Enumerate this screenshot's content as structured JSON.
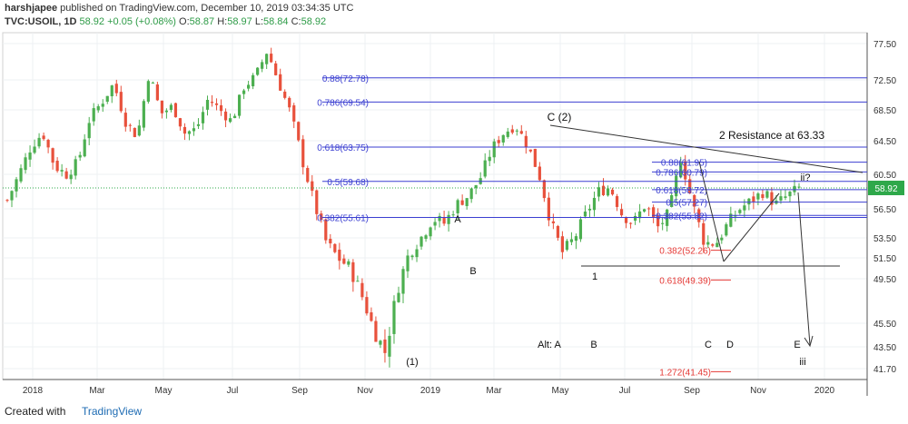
{
  "header": {
    "user": "harshjapee",
    "published": "published on TradingView.com, December 10, 2019 03:34:35 UTC",
    "symbol": "TVC:USOIL, 1D",
    "last": "58.92",
    "change": "+0.05 (+0.08%)",
    "o_label": "O:",
    "o_value": "58.87",
    "h_label": "H:",
    "h_value": "58.97",
    "l_label": "L:",
    "l_value": "58.84",
    "c_label": "C:",
    "c_value": "58.92"
  },
  "footer": {
    "created_with": "Created with",
    "brand": "TradingView"
  },
  "colors": {
    "up": "#4caf50",
    "down": "#e8513c",
    "fib": "#3b3fd1",
    "fib_low": "#e53935",
    "price_badge": "#2ea84a"
  },
  "chart_data": {
    "type": "candlestick",
    "title": "",
    "x_ticks": [
      "2018",
      "Mar",
      "May",
      "Jul",
      "Sep",
      "Nov",
      "2019",
      "Mar",
      "May",
      "Jul",
      "Sep",
      "Nov",
      "2020"
    ],
    "y_ticks": [
      "77.50",
      "72.50",
      "68.50",
      "64.50",
      "60.50",
      "56.50",
      "53.50",
      "51.50",
      "49.50",
      "45.50",
      "43.50",
      "41.70"
    ],
    "ylim": [
      40.5,
      78.5
    ],
    "last_price": 58.92,
    "price_path": [
      [
        0,
        57.5
      ],
      [
        1,
        60.5
      ],
      [
        2,
        63.8
      ],
      [
        3,
        65.5
      ],
      [
        4,
        61.5
      ],
      [
        5,
        60.5
      ],
      [
        6,
        62.0
      ],
      [
        7,
        67.5
      ],
      [
        8,
        69.5
      ],
      [
        9,
        72.0
      ],
      [
        10,
        67.0
      ],
      [
        11,
        65.0
      ],
      [
        12,
        73.5
      ],
      [
        13,
        68.0
      ],
      [
        14,
        69.0
      ],
      [
        15,
        65.5
      ],
      [
        16,
        66.0
      ],
      [
        17,
        70.0
      ],
      [
        18,
        68.5
      ],
      [
        19,
        67.0
      ],
      [
        20,
        71.5
      ],
      [
        21,
        73.0
      ],
      [
        22,
        76.5
      ],
      [
        23,
        72.0
      ],
      [
        24,
        68.0
      ],
      [
        25,
        62.0
      ],
      [
        26,
        57.0
      ],
      [
        27,
        53.0
      ],
      [
        28,
        51.5
      ],
      [
        29,
        50.5
      ],
      [
        30,
        48.0
      ],
      [
        31,
        45.0
      ],
      [
        32,
        43.0
      ],
      [
        33,
        48.5
      ],
      [
        34,
        52.0
      ],
      [
        35,
        53.5
      ],
      [
        36,
        55.5
      ],
      [
        37,
        55.0
      ],
      [
        38,
        57.0
      ],
      [
        39,
        58.0
      ],
      [
        40,
        60.0
      ],
      [
        41,
        63.5
      ],
      [
        42,
        65.5
      ],
      [
        43,
        66.5
      ],
      [
        44,
        64.0
      ],
      [
        45,
        60.5
      ],
      [
        46,
        55.0
      ],
      [
        47,
        52.0
      ],
      [
        48,
        53.5
      ],
      [
        49,
        56.0
      ],
      [
        50,
        58.5
      ],
      [
        51,
        59.0
      ],
      [
        52,
        56.0
      ],
      [
        53,
        55.0
      ],
      [
        54,
        57.0
      ],
      [
        55,
        54.5
      ],
      [
        56,
        56.0
      ],
      [
        57,
        62.5
      ],
      [
        58,
        57.0
      ],
      [
        59,
        53.0
      ],
      [
        60,
        53.0
      ],
      [
        61,
        55.0
      ],
      [
        62,
        56.5
      ],
      [
        63,
        57.5
      ],
      [
        64,
        58.5
      ],
      [
        65,
        57.0
      ],
      [
        66,
        58.0
      ],
      [
        67,
        58.9
      ]
    ],
    "fib_levels": [
      {
        "label": "0.88(72.78)",
        "value": 72.78,
        "group": "upper"
      },
      {
        "label": "0.786(69.54)",
        "value": 69.54,
        "group": "upper"
      },
      {
        "label": "0.618(63.75)",
        "value": 63.75,
        "group": "upper"
      },
      {
        "label": "0.5(59.68)",
        "value": 59.68,
        "group": "upper"
      },
      {
        "label": "0.382(55.61)",
        "value": 55.61,
        "group": "upper"
      },
      {
        "label": "0.88(61.95)",
        "value": 61.95,
        "group": "right"
      },
      {
        "label": "0.786(60.79)",
        "value": 60.79,
        "group": "right"
      },
      {
        "label": "0.618(58.72)",
        "value": 58.72,
        "group": "right"
      },
      {
        "label": "0.5(57.27)",
        "value": 57.27,
        "group": "right"
      },
      {
        "label": "0.382(55.82)",
        "value": 55.82,
        "group": "right"
      },
      {
        "label": "0.382(52.26)",
        "value": 52.26,
        "group": "lower"
      },
      {
        "label": "0.618(49.39)",
        "value": 49.39,
        "group": "lower"
      },
      {
        "label": "1.272(41.45)",
        "value": 41.45,
        "group": "lower"
      }
    ],
    "annotations": [
      "C (2)",
      "2 Resistance at 63.33",
      "ii?",
      "A",
      "B",
      "1",
      "(1)",
      "Alt:  A",
      "B",
      "C",
      "D",
      "E",
      "iii"
    ]
  }
}
